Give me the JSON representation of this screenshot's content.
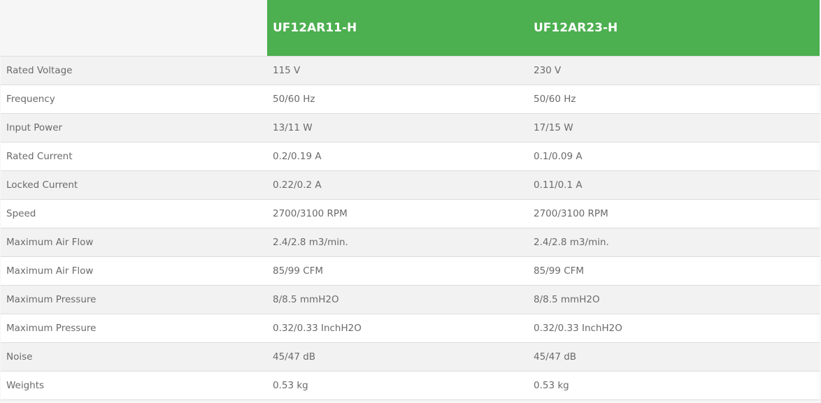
{
  "header": {
    "models": [
      "UF12AR11-H",
      "UF12AR23-H"
    ],
    "accent_color": "#4caf50"
  },
  "rows": [
    {
      "label": "Rated Voltage",
      "values": [
        "115 V",
        "230 V"
      ]
    },
    {
      "label": "Frequency",
      "values": [
        "50/60 Hz",
        "50/60 Hz"
      ]
    },
    {
      "label": "Input Power",
      "values": [
        "13/11 W",
        "17/15 W"
      ]
    },
    {
      "label": "Rated Current",
      "values": [
        "0.2/0.19 A",
        "0.1/0.09 A"
      ]
    },
    {
      "label": "Locked Current",
      "values": [
        "0.22/0.2 A",
        "0.11/0.1 A"
      ]
    },
    {
      "label": "Speed",
      "values": [
        "2700/3100 RPM",
        "2700/3100 RPM"
      ]
    },
    {
      "label": "Maximum Air Flow",
      "values": [
        "2.4/2.8 m3/min.",
        "2.4/2.8 m3/min."
      ]
    },
    {
      "label": "Maximum Air Flow",
      "values": [
        "85/99 CFM",
        "85/99 CFM"
      ]
    },
    {
      "label": "Maximum Pressure",
      "values": [
        "8/8.5 mmH2O",
        "8/8.5 mmH2O"
      ]
    },
    {
      "label": "Maximum Pressure",
      "values": [
        "0.32/0.33 InchH2O",
        "0.32/0.33 InchH2O"
      ]
    },
    {
      "label": "Noise",
      "values": [
        "45/47 dB",
        "45/47 dB"
      ]
    },
    {
      "label": "Weights",
      "values": [
        "0.53 kg",
        "0.53 kg"
      ]
    }
  ]
}
